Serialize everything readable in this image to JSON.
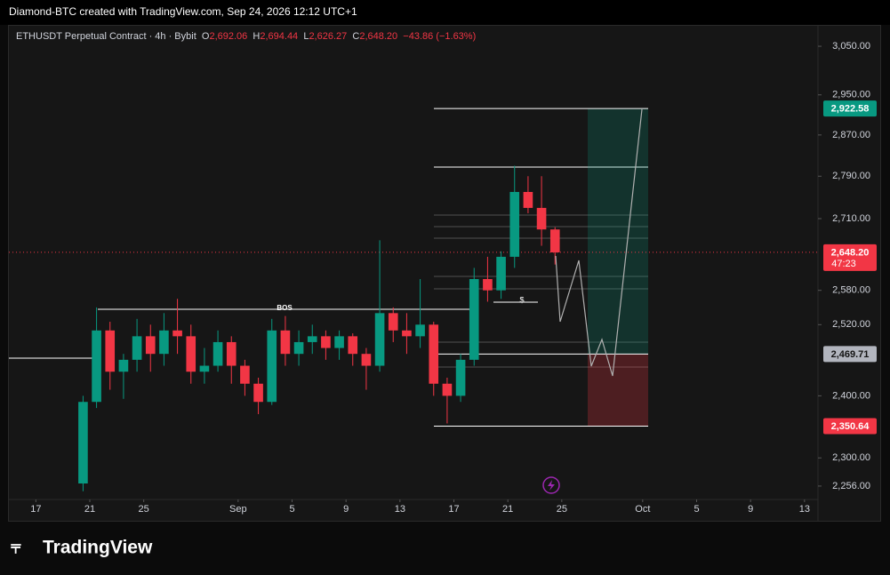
{
  "header": {
    "caption": "Diamond-BTC created with TradingView.com, Sep 24, 2026 12:12 UTC+1"
  },
  "legend": {
    "symbol": "ETHUSDT Perpetual Contract · 4h · Bybit",
    "o_label": "O",
    "open": "2,692.06",
    "h_label": "H",
    "high": "2,694.44",
    "l_label": "L",
    "low": "2,626.27",
    "c_label": "C",
    "close": "2,648.20",
    "change": "−43.86 (−1.63%)"
  },
  "chart_data": {
    "type": "candlestick",
    "log_scale": true,
    "up_color": "#089981",
    "down_color": "#f23645",
    "x": [
      "2026-08-20",
      "2026-08-21",
      "2026-08-22",
      "2026-08-23",
      "2026-08-24",
      "2026-08-25",
      "2026-08-26",
      "2026-08-27",
      "2026-08-28",
      "2026-08-29",
      "2026-08-30",
      "2026-08-31",
      "2026-09-01",
      "2026-09-02",
      "2026-09-03",
      "2026-09-04",
      "2026-09-05",
      "2026-09-06",
      "2026-09-07",
      "2026-09-08",
      "2026-09-09",
      "2026-09-10",
      "2026-09-11",
      "2026-09-12",
      "2026-09-13",
      "2026-09-14",
      "2026-09-15",
      "2026-09-16",
      "2026-09-17",
      "2026-09-18",
      "2026-09-19",
      "2026-09-20",
      "2026-09-21",
      "2026-09-22",
      "2026-09-23",
      "2026-09-24"
    ],
    "open": [
      2260,
      2390,
      2510,
      2440,
      2460,
      2500,
      2470,
      2510,
      2500,
      2440,
      2450,
      2490,
      2450,
      2420,
      2390,
      2510,
      2470,
      2490,
      2500,
      2480,
      2500,
      2470,
      2450,
      2540,
      2510,
      2500,
      2520,
      2420,
      2400,
      2460,
      2600,
      2580,
      2640,
      2760,
      2730,
      2690
    ],
    "high": [
      2400,
      2550,
      2525,
      2470,
      2530,
      2520,
      2540,
      2565,
      2520,
      2480,
      2510,
      2500,
      2460,
      2430,
      2530,
      2535,
      2510,
      2520,
      2510,
      2510,
      2505,
      2480,
      2670,
      2550,
      2540,
      2600,
      2525,
      2430,
      2470,
      2620,
      2640,
      2650,
      2810,
      2790,
      2790,
      2694
    ],
    "low": [
      2248,
      2380,
      2410,
      2395,
      2440,
      2440,
      2450,
      2470,
      2420,
      2420,
      2440,
      2420,
      2400,
      2370,
      2385,
      2450,
      2450,
      2470,
      2460,
      2460,
      2450,
      2410,
      2440,
      2490,
      2470,
      2480,
      2400,
      2355,
      2390,
      2450,
      2560,
      2565,
      2620,
      2720,
      2660,
      2626
    ],
    "close": [
      2390,
      2510,
      2440,
      2460,
      2500,
      2470,
      2510,
      2500,
      2440,
      2450,
      2490,
      2450,
      2420,
      2390,
      2510,
      2470,
      2490,
      2500,
      2480,
      2500,
      2470,
      2450,
      2540,
      2510,
      2500,
      2520,
      2420,
      2400,
      2460,
      2600,
      2580,
      2640,
      2760,
      2730,
      2690,
      2648
    ],
    "xlim": [
      "2026-08-15",
      "2026-10-14"
    ],
    "xticks": [
      {
        "value": "2026-08-17",
        "label": "17"
      },
      {
        "value": "2026-08-21",
        "label": "21"
      },
      {
        "value": "2026-08-25",
        "label": "25"
      },
      {
        "value": "2026-09-01",
        "label": "Sep"
      },
      {
        "value": "2026-09-05",
        "label": "5"
      },
      {
        "value": "2026-09-09",
        "label": "9"
      },
      {
        "value": "2026-09-13",
        "label": "13"
      },
      {
        "value": "2026-09-17",
        "label": "17"
      },
      {
        "value": "2026-09-21",
        "label": "21"
      },
      {
        "value": "2026-09-25",
        "label": "25"
      },
      {
        "value": "2026-10-01",
        "label": "Oct"
      },
      {
        "value": "2026-10-05",
        "label": "5"
      },
      {
        "value": "2026-10-09",
        "label": "9"
      },
      {
        "value": "2026-10-13",
        "label": "13"
      }
    ],
    "ylim": [
      2234,
      3095
    ],
    "yticks": [
      {
        "value": 3050,
        "label": "3,050.00"
      },
      {
        "value": 2950,
        "label": "2,950.00"
      },
      {
        "value": 2870,
        "label": "2,870.00"
      },
      {
        "value": 2790,
        "label": "2,790.00"
      },
      {
        "value": 2710,
        "label": "2,710.00"
      },
      {
        "value": 2580,
        "label": "2,580.00"
      },
      {
        "value": 2520,
        "label": "2,520.00"
      },
      {
        "value": 2400,
        "label": "2,400.00"
      },
      {
        "value": 2300,
        "label": "2,300.00"
      },
      {
        "value": 2256,
        "label": "2,256.00"
      }
    ],
    "last_price": {
      "value": 2648.2,
      "label": "2,648.20"
    },
    "countdown": "47:23",
    "position": {
      "target": {
        "value": 2922.58,
        "label": "2,922.58"
      },
      "entry": {
        "value": 2469.71,
        "label": "2,469.71"
      },
      "stop": {
        "value": 2350.64,
        "label": "2,350.64"
      }
    },
    "annotations": {
      "bos": "BOS",
      "liquidity": "$"
    }
  },
  "footer": {
    "brand": "TradingView"
  }
}
